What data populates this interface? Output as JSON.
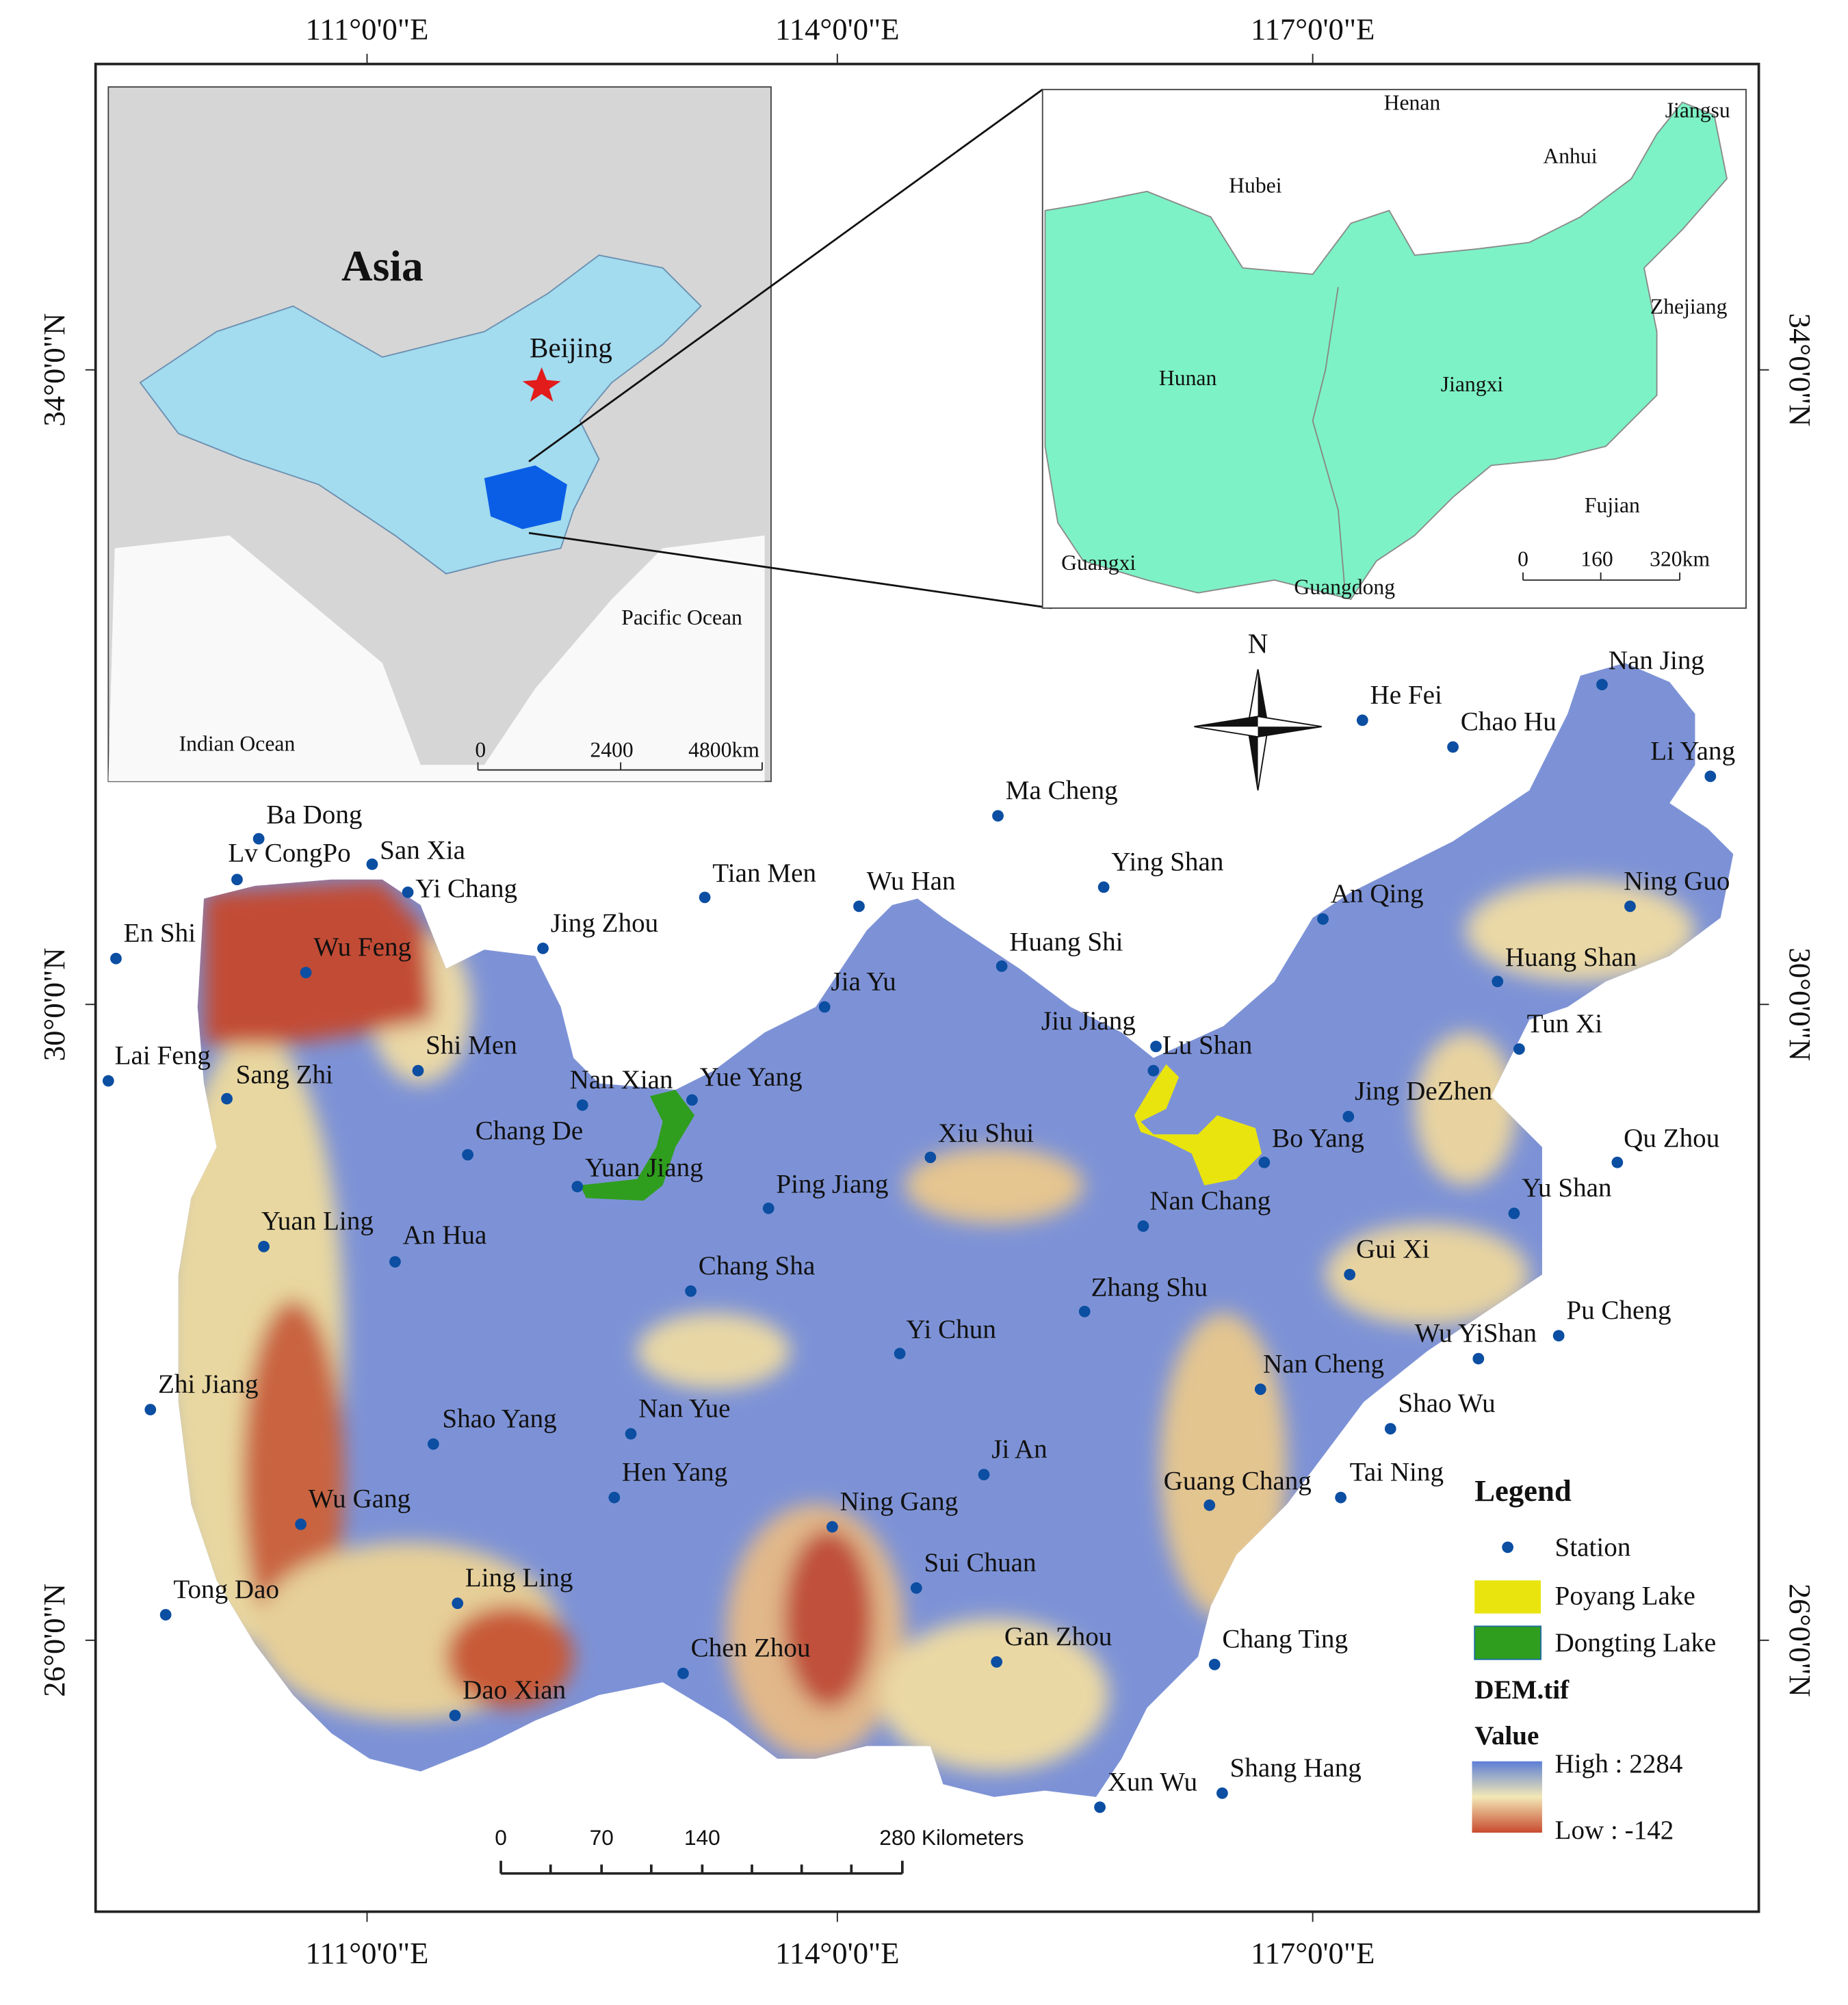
{
  "axes": {
    "longitudes": [
      "111°0'0\"E",
      "114°0'0\"E",
      "117°0'0\"E"
    ],
    "latitudes": [
      "34°0'0\"N",
      "30°0'0\"N",
      "26°0'0\"N"
    ]
  },
  "inset_asia": {
    "title": "Asia",
    "labels": [
      "Beijing",
      "Pacific Ocean",
      "Indian Ocean"
    ],
    "scale": [
      "0",
      "2400",
      "4800km"
    ]
  },
  "inset_provinces": {
    "labels": [
      "Henan",
      "Jiangsu",
      "Anhui",
      "Hubei",
      "Zhejiang",
      "Hunan",
      "Jiangxi",
      "Fujian",
      "Guangxi",
      "Guangdong"
    ],
    "scale": [
      "0",
      "160",
      "320km"
    ]
  },
  "north_arrow": "N",
  "stations": [
    "Nan Jing",
    "He Fei",
    "Chao Hu",
    "Li Yang",
    "Ma Cheng",
    "Ying Shan",
    "Ba Dong",
    "Lv CongPo",
    "San Xia",
    "Yi Chang",
    "Tian Men",
    "Wu Han",
    "An Qing",
    "Ning Guo",
    "En Shi",
    "Jing Zhou",
    "Wu Feng",
    "Huang Shi",
    "Huang Shan",
    "Jia Yu",
    "Jiu Jiang",
    "Lu Shan",
    "Tun Xi",
    "Lai Feng",
    "Sang Zhi",
    "Shi Men",
    "Nan Xian",
    "Yue Yang",
    "Jing DeZhen",
    "Chang De",
    "Xiu Shui",
    "Bo Yang",
    "Qu Zhou",
    "Yuan Jiang",
    "Ping Jiang",
    "Nan Chang",
    "Yu Shan",
    "Yuan Ling",
    "An Hua",
    "Chang Sha",
    "Gui Xi",
    "Zhang Shu",
    "Pu Cheng",
    "Yi Chun",
    "Wu YiShan",
    "Nan Cheng",
    "Zhi Jiang",
    "Shao Yang",
    "Nan Yue",
    "Shao Wu",
    "Ji An",
    "Hen Yang",
    "Tai Ning",
    "Guang Chang",
    "Ning Gang",
    "Wu Gang",
    "Sui Chuan",
    "Ling Ling",
    "Tong Dao",
    "Gan Zhou",
    "Chang Ting",
    "Chen Zhou",
    "Dao Xian",
    "Xun Wu",
    "Shang Hang"
  ],
  "scale_bar": [
    "0",
    "70",
    "140",
    "280 Kilometers"
  ],
  "legend": {
    "title": "Legend",
    "items": [
      "Station",
      "Poyang Lake",
      "Dongting Lake"
    ],
    "raster": "DEM.tif",
    "value": "Value",
    "high": "High : 2284",
    "low": "Low : -142"
  }
}
